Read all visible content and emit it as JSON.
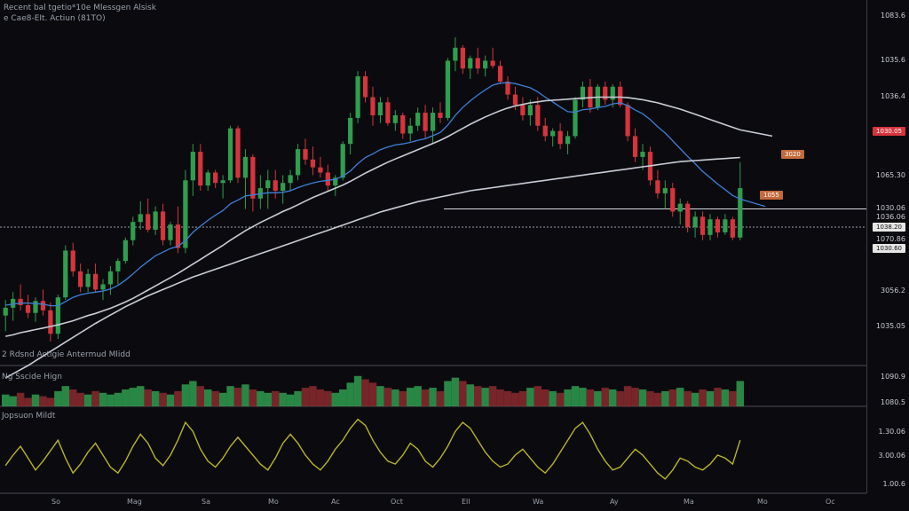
{
  "header": {
    "line1": "Recent bal tgetio*10e Mlessgen Alsisk",
    "line2": "e Cae8-EIt. Actiun (81TO)"
  },
  "panels": {
    "indicator_label": "2 Rdsnd Actigie Antermud Mlidd",
    "volume_label": "Ng Sscide Hign",
    "oscillator_label": "Jopsuon Mildt"
  },
  "colors": {
    "background": "#0b0b0f",
    "up": "#2f9e4f",
    "down": "#d6343e",
    "ma_fast": "#3f7fd6",
    "ma_slow": "#c9ccd6",
    "oscillator": "#b8b428",
    "badge_red": "#d6343e",
    "badge_orange": "#c46a3c"
  },
  "price_axis": [
    {
      "label": "1083.6",
      "value": 1083.6
    },
    {
      "label": "1035.6",
      "value": 1035.6
    },
    {
      "label": "1036.4",
      "value": 1036.4
    },
    {
      "label": "1030.05",
      "value": 1030.05
    },
    {
      "label": "1065.30",
      "value": 1065.3
    },
    {
      "label": "1030.06",
      "value": 1030.06
    },
    {
      "label": "1036.06",
      "value": 1036.06
    },
    {
      "label": "1070.86",
      "value": 1070.86
    },
    {
      "label": "3056.2",
      "value": 3056.2
    },
    {
      "label": "1035.05",
      "value": 1035.05
    }
  ],
  "price_badges": {
    "current": "1030.05",
    "level_a": "1038.20",
    "level_b": "1030.60",
    "orange_left": "3020",
    "orange_right": "1055"
  },
  "volume_axis": [
    "1090.9",
    "1080.5"
  ],
  "oscillator_axis": [
    "1.30.06",
    "3.00.06",
    "1.00.6"
  ],
  "time_axis": [
    "So",
    "Mag",
    "Sa",
    "Mo",
    "Ac",
    "Oct",
    "Ell",
    "Wa",
    "Ay",
    "Ma",
    "Mo",
    "Oc"
  ],
  "chart_data": {
    "type": "candlestick",
    "title": "",
    "xlabel": "",
    "ylabel": "",
    "grid": false,
    "candles": [
      [
        42.0,
        45.0,
        39.0,
        43.5
      ],
      [
        43.5,
        46.5,
        41.0,
        45.2
      ],
      [
        45.2,
        48.0,
        43.0,
        44.0
      ],
      [
        44.0,
        46.0,
        41.5,
        42.5
      ],
      [
        42.5,
        45.5,
        40.8,
        44.8
      ],
      [
        44.8,
        47.0,
        42.0,
        43.0
      ],
      [
        43.0,
        44.5,
        37.0,
        38.5
      ],
      [
        38.5,
        46.0,
        37.5,
        45.5
      ],
      [
        45.5,
        55.5,
        45.0,
        54.5
      ],
      [
        54.5,
        56.0,
        49.5,
        50.5
      ],
      [
        50.5,
        52.0,
        46.5,
        47.5
      ],
      [
        47.5,
        51.0,
        46.5,
        50.0
      ],
      [
        50.0,
        52.0,
        46.5,
        47.0
      ],
      [
        47.0,
        49.0,
        45.0,
        48.0
      ],
      [
        48.0,
        51.5,
        46.0,
        50.5
      ],
      [
        50.5,
        53.0,
        48.0,
        52.5
      ],
      [
        52.5,
        57.0,
        52.0,
        56.5
      ],
      [
        56.5,
        61.0,
        55.5,
        60.0
      ],
      [
        60.0,
        64.0,
        58.5,
        61.5
      ],
      [
        61.5,
        64.5,
        58.0,
        58.5
      ],
      [
        58.5,
        63.0,
        57.5,
        62.0
      ],
      [
        62.0,
        63.5,
        55.5,
        56.5
      ],
      [
        56.5,
        60.0,
        55.5,
        59.5
      ],
      [
        59.5,
        63.0,
        54.0,
        55.0
      ],
      [
        55.0,
        70.0,
        54.0,
        68.0
      ],
      [
        68.0,
        75.0,
        65.0,
        73.5
      ],
      [
        73.5,
        75.0,
        66.0,
        67.0
      ],
      [
        67.0,
        70.0,
        66.0,
        69.5
      ],
      [
        69.5,
        70.0,
        66.5,
        67.5
      ],
      [
        67.5,
        69.0,
        64.5,
        68.0
      ],
      [
        68.0,
        78.5,
        67.5,
        78.0
      ],
      [
        78.0,
        78.5,
        67.5,
        68.5
      ],
      [
        68.5,
        74.0,
        62.5,
        72.5
      ],
      [
        72.5,
        73.0,
        62.0,
        64.5
      ],
      [
        64.5,
        69.0,
        62.5,
        66.5
      ],
      [
        66.5,
        70.0,
        62.5,
        68.0
      ],
      [
        68.0,
        70.0,
        64.5,
        66.0
      ],
      [
        66.0,
        69.0,
        63.5,
        67.5
      ],
      [
        67.5,
        70.0,
        66.0,
        69.0
      ],
      [
        69.0,
        75.0,
        68.0,
        74.0
      ],
      [
        74.0,
        76.0,
        71.0,
        72.0
      ],
      [
        72.0,
        74.5,
        69.0,
        70.5
      ],
      [
        70.5,
        72.5,
        68.5,
        69.5
      ],
      [
        69.5,
        71.0,
        66.0,
        67.0
      ],
      [
        67.0,
        69.0,
        65.0,
        68.5
      ],
      [
        68.5,
        75.5,
        68.0,
        75.0
      ],
      [
        75.0,
        81.0,
        73.0,
        80.0
      ],
      [
        80.0,
        89.0,
        79.0,
        88.0
      ],
      [
        88.0,
        89.0,
        83.0,
        84.0
      ],
      [
        84.0,
        86.0,
        78.5,
        80.5
      ],
      [
        80.5,
        84.0,
        79.0,
        83.0
      ],
      [
        83.0,
        84.0,
        78.5,
        79.0
      ],
      [
        79.0,
        81.5,
        77.5,
        80.5
      ],
      [
        80.5,
        81.0,
        76.0,
        77.0
      ],
      [
        77.0,
        80.0,
        75.5,
        78.5
      ],
      [
        78.5,
        82.0,
        77.5,
        81.0
      ],
      [
        81.0,
        82.5,
        76.0,
        77.5
      ],
      [
        77.5,
        82.0,
        75.0,
        81.0
      ],
      [
        81.0,
        83.0,
        79.0,
        80.0
      ],
      [
        80.0,
        91.5,
        79.5,
        91.0
      ],
      [
        91.0,
        95.5,
        89.0,
        93.5
      ],
      [
        93.5,
        94.0,
        88.5,
        89.5
      ],
      [
        89.5,
        92.0,
        87.5,
        91.5
      ],
      [
        91.5,
        93.5,
        88.5,
        89.5
      ],
      [
        89.5,
        92.0,
        88.0,
        91.0
      ],
      [
        91.0,
        93.5,
        89.5,
        90.0
      ],
      [
        90.0,
        91.0,
        86.5,
        87.0
      ],
      [
        87.0,
        88.0,
        83.5,
        84.5
      ],
      [
        84.5,
        86.0,
        81.5,
        82.5
      ],
      [
        82.5,
        84.0,
        79.5,
        80.5
      ],
      [
        80.5,
        83.5,
        78.5,
        82.5
      ],
      [
        82.5,
        84.0,
        77.5,
        78.5
      ],
      [
        78.5,
        80.0,
        75.5,
        76.5
      ],
      [
        76.5,
        78.0,
        74.5,
        77.5
      ],
      [
        77.5,
        79.0,
        74.0,
        75.0
      ],
      [
        75.0,
        77.5,
        73.0,
        76.5
      ],
      [
        76.5,
        84.0,
        76.0,
        83.5
      ],
      [
        83.5,
        87.0,
        82.0,
        86.0
      ],
      [
        86.0,
        87.5,
        81.0,
        82.0
      ],
      [
        82.0,
        86.5,
        81.5,
        86.0
      ],
      [
        86.0,
        87.0,
        82.5,
        83.5
      ],
      [
        83.5,
        86.5,
        82.0,
        86.0
      ],
      [
        86.0,
        87.0,
        82.0,
        82.5
      ],
      [
        82.5,
        83.0,
        75.5,
        76.5
      ],
      [
        76.5,
        78.0,
        71.5,
        72.5
      ],
      [
        72.5,
        75.0,
        70.0,
        73.5
      ],
      [
        73.5,
        74.5,
        67.0,
        68.0
      ],
      [
        68.0,
        70.0,
        64.5,
        65.5
      ],
      [
        65.5,
        68.0,
        62.5,
        66.5
      ],
      [
        66.5,
        67.5,
        61.0,
        62.0
      ],
      [
        62.0,
        64.5,
        59.5,
        63.5
      ],
      [
        63.5,
        64.0,
        58.0,
        59.0
      ],
      [
        59.0,
        62.0,
        57.0,
        61.0
      ],
      [
        61.0,
        62.0,
        56.5,
        57.5
      ],
      [
        57.5,
        61.5,
        56.5,
        60.5
      ],
      [
        60.5,
        61.0,
        57.0,
        58.0
      ],
      [
        58.0,
        61.5,
        57.5,
        60.5
      ],
      [
        60.5,
        61.0,
        56.5,
        57.0
      ],
      [
        57.0,
        71.5,
        56.5,
        66.5
      ]
    ],
    "series": [
      {
        "type": "line",
        "values": [
          44.0,
          44.2,
          44.4,
          44.4,
          44.3,
          44.2,
          43.9,
          43.9,
          44.7,
          45.5,
          46.0,
          46.3,
          46.5,
          46.7,
          47.1,
          47.8,
          48.8,
          50.0,
          51.3,
          52.4,
          53.5,
          54.2,
          54.9,
          55.3,
          56.4,
          58.0,
          59.2,
          60.3,
          61.3,
          62.2,
          63.5,
          64.2,
          65.0,
          65.2,
          65.4,
          65.6,
          65.6,
          65.7,
          66.0,
          66.6,
          67.1,
          67.5,
          67.8,
          68.0,
          68.2,
          68.8,
          69.8,
          71.2,
          72.4,
          73.1,
          73.9,
          74.4,
          74.8,
          75.0,
          75.3,
          75.7,
          76.0,
          76.6,
          77.2,
          78.6,
          80.5,
          82.0,
          83.3,
          84.4,
          85.4,
          86.3,
          86.7,
          86.8,
          86.6,
          86.2,
          85.8,
          85.0,
          84.0,
          83.1,
          82.1,
          81.2,
          81.1,
          81.6,
          81.7,
          82.0,
          82.2,
          82.7,
          82.9,
          82.4,
          81.5,
          80.8,
          79.7,
          78.3,
          77.1,
          75.6,
          74.1,
          72.6,
          71.2,
          69.7,
          68.5,
          67.3,
          66.2,
          65.1,
          64.4
        ]
      },
      {
        "type": "line",
        "values": [
          38.0,
          38.3,
          38.7,
          39.0,
          39.3,
          39.6,
          39.9,
          40.2,
          40.6,
          41.0,
          41.5,
          42.0,
          42.4,
          42.9,
          43.4,
          44.0,
          44.6,
          45.3,
          46.1,
          46.9,
          47.7,
          48.5,
          49.3,
          50.1,
          51.0,
          51.9,
          52.8,
          53.7,
          54.6,
          55.5,
          56.5,
          57.4,
          58.3,
          59.1,
          59.9,
          60.6,
          61.3,
          62.0,
          62.6,
          63.3,
          64.0,
          64.7,
          65.3,
          65.9,
          66.5,
          67.1,
          67.8,
          68.6,
          69.4,
          70.1,
          70.8,
          71.5,
          72.1,
          72.7,
          73.3,
          73.9,
          74.5,
          75.1,
          75.7,
          76.4,
          77.2,
          78.0,
          78.8,
          79.5,
          80.2,
          80.8,
          81.4,
          81.9,
          82.3,
          82.6,
          82.9,
          83.1,
          83.3,
          83.4,
          83.5,
          83.6,
          83.7,
          83.8,
          83.9,
          84.0,
          84.0,
          84.0,
          84.0,
          83.9,
          83.7,
          83.5,
          83.2,
          82.9,
          82.5,
          82.1,
          81.7,
          81.2,
          80.7,
          80.2,
          79.7,
          79.2,
          78.7,
          78.2,
          77.7
        ]
      },
      {
        "type": "line",
        "values": [
          30.0,
          30.8,
          31.6,
          32.4,
          33.3,
          34.2,
          35.1,
          36.0,
          36.9,
          37.8,
          38.7,
          39.6,
          40.5,
          41.3,
          42.1,
          42.9,
          43.7,
          44.4,
          45.1,
          45.8,
          46.4,
          47.0,
          47.6,
          48.2,
          48.8,
          49.4,
          49.9,
          50.4,
          50.9,
          51.4,
          51.9,
          52.4,
          52.9,
          53.4,
          53.9,
          54.4,
          54.9,
          55.4,
          55.9,
          56.4,
          56.9,
          57.4,
          57.9,
          58.4,
          58.9,
          59.4,
          59.9,
          60.4,
          60.9,
          61.4,
          61.9,
          62.3,
          62.7,
          63.1,
          63.5,
          63.9,
          64.2,
          64.5,
          64.8,
          65.1,
          65.4,
          65.7,
          66.0,
          66.2,
          66.4,
          66.6,
          66.8,
          67.0,
          67.2,
          67.4,
          67.6,
          67.8,
          68.0,
          68.2,
          68.4,
          68.6,
          68.8,
          69.0,
          69.2,
          69.4,
          69.6,
          69.8,
          70.0,
          70.2,
          70.4,
          70.6,
          70.8,
          71.0,
          71.2,
          71.4,
          71.6,
          71.7,
          71.8,
          71.9,
          72.0,
          72.1,
          72.2,
          72.3,
          72.4
        ]
      }
    ],
    "volume": [
      7,
      6,
      8,
      5,
      7,
      6,
      5,
      9,
      12,
      10,
      8,
      7,
      9,
      8,
      7,
      8,
      10,
      11,
      12,
      10,
      9,
      8,
      7,
      9,
      13,
      15,
      12,
      10,
      9,
      8,
      12,
      11,
      13,
      10,
      9,
      8,
      9,
      8,
      7,
      9,
      11,
      12,
      10,
      9,
      8,
      10,
      14,
      18,
      16,
      14,
      12,
      11,
      10,
      9,
      11,
      12,
      10,
      11,
      9,
      15,
      17,
      15,
      13,
      12,
      11,
      12,
      10,
      9,
      8,
      9,
      11,
      12,
      10,
      9,
      8,
      10,
      12,
      11,
      10,
      9,
      11,
      10,
      9,
      12,
      11,
      10,
      9,
      8,
      9,
      10,
      11,
      9,
      8,
      10,
      9,
      11,
      10,
      9,
      15
    ],
    "oscillator": [
      45,
      52,
      58,
      50,
      42,
      48,
      55,
      62,
      50,
      40,
      46,
      54,
      60,
      52,
      44,
      40,
      48,
      58,
      66,
      60,
      50,
      45,
      52,
      62,
      74,
      68,
      56,
      48,
      44,
      50,
      58,
      64,
      58,
      52,
      46,
      42,
      50,
      60,
      66,
      60,
      52,
      46,
      42,
      48,
      56,
      62,
      70,
      76,
      72,
      62,
      54,
      48,
      46,
      52,
      60,
      56,
      48,
      44,
      50,
      58,
      68,
      74,
      70,
      62,
      54,
      48,
      44,
      46,
      52,
      56,
      50,
      44,
      40,
      46,
      54,
      62,
      70,
      74,
      66,
      56,
      48,
      42,
      44,
      50,
      56,
      52,
      46,
      40,
      36,
      42,
      50,
      48,
      44,
      42,
      46,
      52,
      50,
      46,
      62
    ],
    "horizontal_lines": [
      {
        "value": 62.5,
        "style": "solid"
      },
      {
        "value": 59.0,
        "style": "dashed"
      }
    ]
  }
}
